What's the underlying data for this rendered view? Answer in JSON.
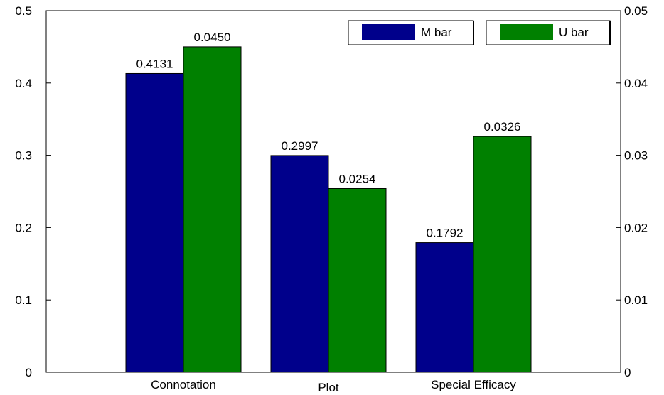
{
  "chart_data": {
    "type": "bar",
    "title": "",
    "xlabel": "",
    "ylabel": "",
    "categories": [
      "Connotation",
      "Plot",
      "Special Efficacy"
    ],
    "series": [
      {
        "name": "M bar",
        "axis": "left",
        "color": "#00008b",
        "values": [
          0.4131,
          0.2997,
          0.1792
        ],
        "labels": [
          "0.4131",
          "0.2997",
          "0.1792"
        ]
      },
      {
        "name": "U bar",
        "axis": "right",
        "color": "#008000",
        "values": [
          0.045,
          0.0254,
          0.0326
        ],
        "labels": [
          "0.0450",
          "0.0254",
          "0.0326"
        ]
      }
    ],
    "ylim_left": [
      0,
      0.5
    ],
    "ylim_right": [
      0,
      0.05
    ],
    "yticks_left": [
      "0",
      "0.1",
      "0.2",
      "0.3",
      "0.4",
      "0.5"
    ],
    "yticks_right": [
      "0",
      "0.01",
      "0.02",
      "0.03",
      "0.04",
      "0.05"
    ],
    "grid": false,
    "legend": "top-right"
  }
}
